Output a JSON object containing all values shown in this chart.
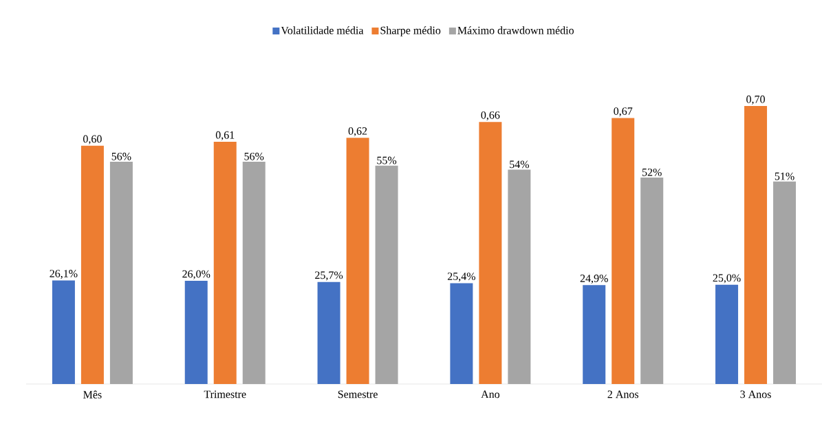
{
  "chart_data": {
    "type": "bar",
    "categories": [
      "Mês",
      "Trimestre",
      "Semestre",
      "Ano",
      "2 Anos",
      "3 Anos"
    ],
    "legend": "top",
    "series": [
      {
        "name": "Volatilidade média",
        "color": "#4472c4",
        "values": [
          0.261,
          0.26,
          0.257,
          0.254,
          0.249,
          0.25
        ],
        "value_labels": [
          "26,1%",
          "26,0%",
          "25,7%",
          "25,4%",
          "24,9%",
          "25,0%"
        ]
      },
      {
        "name": "Sharpe médio",
        "color": "#ed7d31",
        "values": [
          0.6,
          0.61,
          0.62,
          0.66,
          0.67,
          0.7
        ],
        "value_labels": [
          "0,60",
          "0,61",
          "0,62",
          "0,66",
          "0,67",
          "0,70"
        ]
      },
      {
        "name": "Máximo drawdown médio",
        "color": "#a5a5a5",
        "values": [
          0.56,
          0.56,
          0.55,
          0.54,
          0.52,
          0.51
        ],
        "value_labels": [
          "56%",
          "56%",
          "55%",
          "54%",
          "52%",
          "51%"
        ]
      }
    ]
  }
}
